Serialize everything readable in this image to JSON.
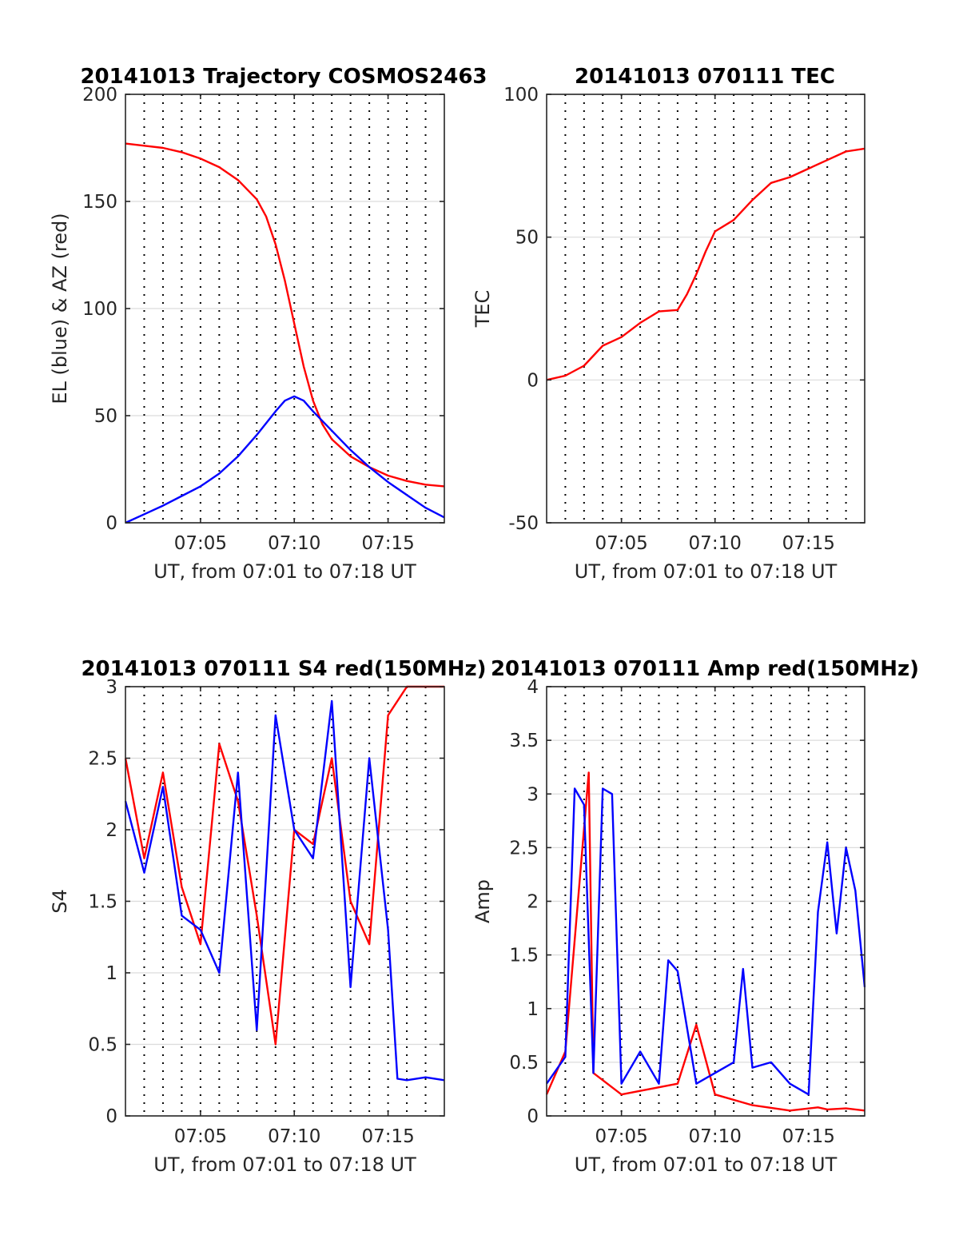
{
  "colors": {
    "red": "#ff0000",
    "blue": "#0000ff",
    "axis": "#262626",
    "grid": "#dcdcdc"
  },
  "chart_data": [
    {
      "type": "line",
      "title": "20141013 Trajectory COSMOS2463",
      "xlabel": "UT, from 07:01 to 07:18 UT",
      "ylabel": "EL (blue) & AZ (red)",
      "xlim": [
        "07:01",
        "07:18"
      ],
      "ylim": [
        0,
        200
      ],
      "xticks": [
        "07:05",
        "07:10",
        "07:15"
      ],
      "yticks": [
        "0",
        "50",
        "100",
        "150",
        "200"
      ],
      "grid": "horizontal solid, vertical dotted each minute",
      "series": [
        {
          "name": "AZ",
          "color": "red",
          "x": [
            "07:01",
            "07:02",
            "07:03",
            "07:04",
            "07:05",
            "07:06",
            "07:07",
            "07:08",
            "07:08:30",
            "07:09",
            "07:09:30",
            "07:10",
            "07:10:30",
            "07:11",
            "07:11:30",
            "07:12",
            "07:13",
            "07:14",
            "07:15",
            "07:16",
            "07:17",
            "07:18"
          ],
          "values": [
            177,
            176,
            175,
            173,
            170,
            166,
            160,
            151,
            143,
            130,
            113,
            93,
            73,
            57,
            46,
            39,
            31,
            26,
            22,
            19.5,
            17.8,
            17
          ]
        },
        {
          "name": "EL",
          "color": "blue",
          "x": [
            "07:01",
            "07:02",
            "07:03",
            "07:04",
            "07:05",
            "07:06",
            "07:07",
            "07:08",
            "07:09",
            "07:09:30",
            "07:10",
            "07:10:30",
            "07:11",
            "07:12",
            "07:13",
            "07:14",
            "07:15",
            "07:16",
            "07:17",
            "07:18"
          ],
          "values": [
            0,
            4,
            8,
            12.5,
            17,
            23,
            31,
            41,
            52,
            57,
            59,
            57,
            52,
            43,
            34,
            26,
            19,
            13,
            7,
            2.5
          ]
        }
      ]
    },
    {
      "type": "line",
      "title": "20141013 070111 TEC",
      "xlabel": "UT, from 07:01 to 07:18 UT",
      "ylabel": "TEC",
      "xlim": [
        "07:01",
        "07:18"
      ],
      "ylim": [
        -50,
        100
      ],
      "xticks": [
        "07:05",
        "07:10",
        "07:15"
      ],
      "yticks": [
        "-50",
        "0",
        "50",
        "100"
      ],
      "series": [
        {
          "name": "TEC",
          "color": "red",
          "x": [
            "07:01",
            "07:02",
            "07:03",
            "07:04",
            "07:05",
            "07:06",
            "07:07",
            "07:08",
            "07:08:30",
            "07:09",
            "07:09:30",
            "07:10",
            "07:11",
            "07:12",
            "07:13",
            "07:14",
            "07:15",
            "07:16",
            "07:17",
            "07:18"
          ],
          "values": [
            0,
            1.5,
            5,
            12,
            15,
            20,
            24,
            24.5,
            30,
            37,
            45,
            52,
            56,
            63,
            69,
            71,
            74,
            77,
            80,
            81
          ]
        }
      ]
    },
    {
      "type": "line",
      "title": "20141013 070111 S4 red(150MHz)",
      "xlabel": "UT, from 07:01 to 07:18 UT",
      "ylabel": "S4",
      "xlim": [
        "07:01",
        "07:18"
      ],
      "ylim": [
        0,
        3
      ],
      "xticks": [
        "07:05",
        "07:10",
        "07:15"
      ],
      "yticks": [
        "0",
        "0.5",
        "1",
        "1.5",
        "2",
        "2.5",
        "3"
      ],
      "series": [
        {
          "name": "red",
          "color": "red",
          "x": [
            "07:01",
            "07:02",
            "07:03",
            "07:04",
            "07:05",
            "07:06",
            "07:07",
            "07:08",
            "07:09",
            "07:10",
            "07:11",
            "07:12",
            "07:13",
            "07:14",
            "07:15",
            "07:16",
            "07:17",
            "07:18"
          ],
          "values": [
            2.5,
            1.8,
            2.4,
            1.6,
            1.2,
            2.6,
            2.2,
            1.4,
            0.5,
            2.0,
            1.9,
            2.5,
            1.5,
            1.2,
            2.8,
            3.0,
            3.0,
            3.0
          ]
        },
        {
          "name": "blue",
          "color": "blue",
          "x": [
            "07:01",
            "07:02",
            "07:03",
            "07:04",
            "07:05",
            "07:06",
            "07:07",
            "07:08",
            "07:09",
            "07:10",
            "07:11",
            "07:12",
            "07:13",
            "07:14",
            "07:15",
            "07:15:30",
            "07:16",
            "07:17",
            "07:18"
          ],
          "values": [
            2.2,
            1.7,
            2.3,
            1.4,
            1.3,
            1.0,
            2.4,
            0.6,
            2.8,
            2.0,
            1.8,
            2.9,
            0.9,
            2.5,
            1.3,
            0.26,
            0.25,
            0.27,
            0.25
          ]
        }
      ]
    },
    {
      "type": "line",
      "title": "20141013 070111 Amp red(150MHz)",
      "xlabel": "UT, from 07:01 to 07:18 UT",
      "ylabel": "Amp",
      "xlim": [
        "07:01",
        "07:18"
      ],
      "ylim": [
        0,
        4
      ],
      "xticks": [
        "07:05",
        "07:10",
        "07:15"
      ],
      "yticks": [
        "0",
        "0.5",
        "1",
        "1.5",
        "2",
        "2.5",
        "3",
        "3.5",
        "4"
      ],
      "series": [
        {
          "name": "red",
          "color": "red",
          "x": [
            "07:01",
            "07:02",
            "07:03:15",
            "07:03:30",
            "07:05",
            "07:08",
            "07:09",
            "07:10",
            "07:12",
            "07:14",
            "07:15:30",
            "07:16",
            "07:17",
            "07:18"
          ],
          "values": [
            0.2,
            0.6,
            3.2,
            0.4,
            0.2,
            0.3,
            0.85,
            0.2,
            0.1,
            0.05,
            0.08,
            0.06,
            0.07,
            0.05
          ]
        },
        {
          "name": "blue",
          "color": "blue",
          "x": [
            "07:01",
            "07:02",
            "07:02:30",
            "07:03",
            "07:03:30",
            "07:04",
            "07:04:30",
            "07:05",
            "07:06",
            "07:07",
            "07:07:30",
            "07:08",
            "07:09",
            "07:10",
            "07:11",
            "07:11:30",
            "07:12",
            "07:13",
            "07:14",
            "07:15",
            "07:15:30",
            "07:16",
            "07:16:30",
            "07:17",
            "07:17:30",
            "07:18"
          ],
          "values": [
            0.3,
            0.55,
            3.05,
            2.9,
            0.4,
            3.05,
            3.0,
            0.3,
            0.6,
            0.3,
            1.45,
            1.35,
            0.3,
            0.4,
            0.5,
            1.37,
            0.45,
            0.5,
            0.3,
            0.2,
            1.9,
            2.55,
            1.7,
            2.5,
            2.1,
            1.2
          ]
        }
      ]
    }
  ]
}
